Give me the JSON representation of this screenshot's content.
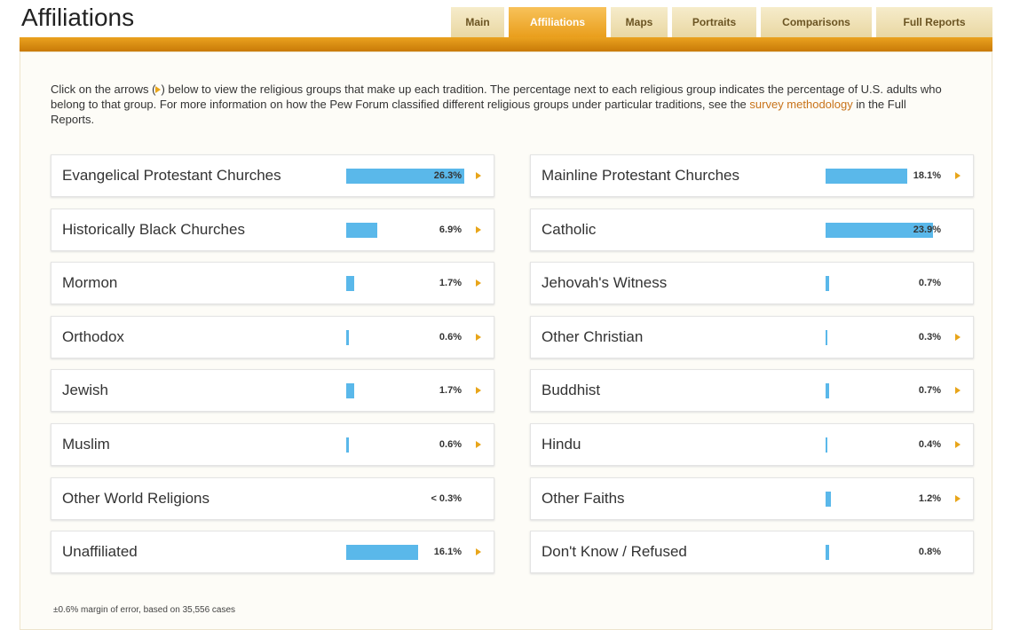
{
  "header": {
    "title": "Affiliations",
    "tabs": [
      "Main",
      "Affiliations",
      "Maps",
      "Portraits",
      "Comparisons",
      "Full Reports"
    ],
    "active_tab": 1
  },
  "intro": {
    "text_before": "Click on the arrows (",
    "text_middle": ") below to view the religious groups that make up each tradition. The percentage next to each religious group indicates the percentage of U.S. adults who belong to that group. For more information on how the Pew Forum classified different religious groups under particular traditions, see the ",
    "link": "survey methodology",
    "text_after": " in the Full Reports."
  },
  "columns": [
    [
      {
        "label": "Evangelical Protestant Churches",
        "value": 26.3,
        "value_label": "26.3%",
        "arrow": true
      },
      {
        "label": "Historically Black Churches",
        "value": 6.9,
        "value_label": "6.9%",
        "arrow": true
      },
      {
        "label": "Mormon",
        "value": 1.7,
        "value_label": "1.7%",
        "arrow": true
      },
      {
        "label": "Orthodox",
        "value": 0.6,
        "value_label": "0.6%",
        "arrow": true
      },
      {
        "label": "Jewish",
        "value": 1.7,
        "value_label": "1.7%",
        "arrow": true
      },
      {
        "label": "Muslim",
        "value": 0.6,
        "value_label": "0.6%",
        "arrow": true
      },
      {
        "label": "Other World Religions",
        "value_label": "< 0.3%",
        "arrow": false
      },
      {
        "label": "Unaffiliated",
        "value": 16.1,
        "value_label": "16.1%",
        "arrow": true
      }
    ],
    [
      {
        "label": "Mainline Protestant Churches",
        "value": 18.1,
        "value_label": "18.1%",
        "arrow": true
      },
      {
        "label": "Catholic",
        "value": 23.9,
        "value_label": "23.9%",
        "arrow": false
      },
      {
        "label": "Jehovah's Witness",
        "value": 0.7,
        "value_label": "0.7%",
        "arrow": false
      },
      {
        "label": "Other Christian",
        "value": 0.3,
        "value_label": "0.3%",
        "arrow": true
      },
      {
        "label": "Buddhist",
        "value": 0.7,
        "value_label": "0.7%",
        "arrow": true
      },
      {
        "label": "Hindu",
        "value": 0.4,
        "value_label": "0.4%",
        "arrow": true
      },
      {
        "label": "Other Faiths",
        "value": 1.2,
        "value_label": "1.2%",
        "arrow": true
      },
      {
        "label": "Don't Know / Refused",
        "value": 0.8,
        "value_label": "0.8%",
        "arrow": false
      }
    ]
  ],
  "footnote": "±0.6% margin of error, based on 35,556 cases"
}
